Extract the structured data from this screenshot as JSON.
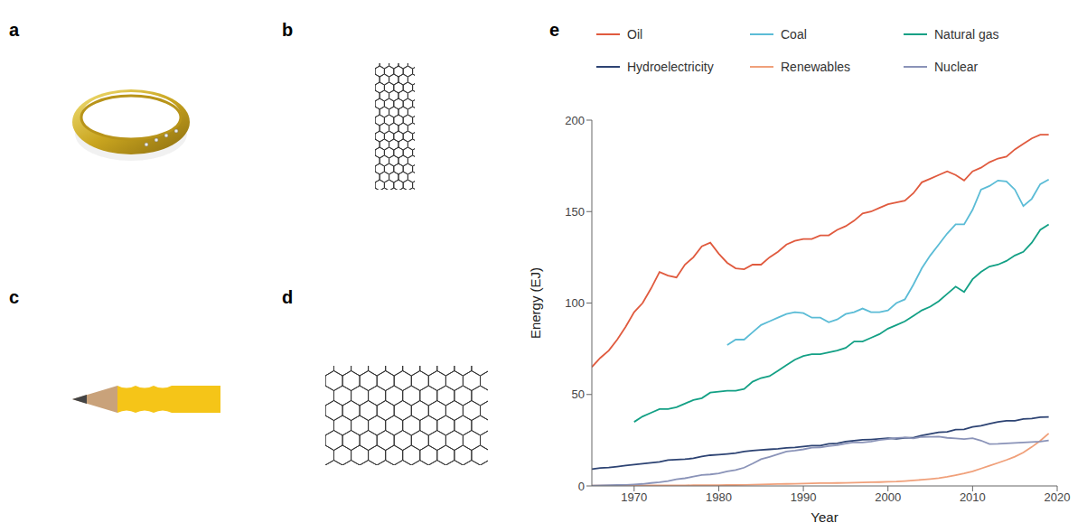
{
  "panels": [
    "a",
    "b",
    "c",
    "d",
    "e"
  ],
  "chart_data": {
    "type": "line",
    "xlabel": "Year",
    "ylabel": "Energy (EJ)",
    "legend": "top",
    "grid": false,
    "xlim": [
      1965,
      2020
    ],
    "xticks": [
      1970,
      1980,
      1990,
      2000,
      2010,
      2020
    ],
    "ylim": [
      0,
      200
    ],
    "yticks": [
      0,
      50,
      100,
      150,
      200
    ],
    "x": [
      1965,
      1966,
      1967,
      1968,
      1969,
      1970,
      1971,
      1972,
      1973,
      1974,
      1975,
      1976,
      1977,
      1978,
      1979,
      1980,
      1981,
      1982,
      1983,
      1984,
      1985,
      1986,
      1987,
      1988,
      1989,
      1990,
      1991,
      1992,
      1993,
      1994,
      1995,
      1996,
      1997,
      1998,
      1999,
      2000,
      2001,
      2002,
      2003,
      2004,
      2005,
      2006,
      2007,
      2008,
      2009,
      2010,
      2011,
      2012,
      2013,
      2014,
      2015,
      2016,
      2017,
      2018,
      2019
    ],
    "series": [
      {
        "name": "Oil",
        "color": "#e05a3e",
        "values": [
          65,
          70,
          74,
          80,
          87,
          95,
          100,
          108,
          117,
          115,
          114,
          121,
          125,
          131,
          133,
          127,
          122,
          119,
          118.5,
          121,
          121,
          125,
          128,
          132,
          134,
          135,
          135,
          137,
          137,
          140,
          142,
          145,
          149,
          150,
          152,
          154,
          155,
          156,
          160,
          166,
          168,
          170,
          172,
          170,
          167,
          172,
          174,
          177,
          179,
          180,
          184,
          187,
          190,
          192,
          192
        ]
      },
      {
        "name": "Coal",
        "color": "#5bbcd6",
        "values": [
          null,
          null,
          null,
          null,
          null,
          null,
          null,
          null,
          null,
          null,
          null,
          null,
          null,
          null,
          null,
          null,
          77,
          80,
          80,
          84,
          88,
          90,
          92,
          94,
          95,
          94.5,
          92,
          92,
          89.5,
          91,
          94,
          95,
          97,
          95,
          95,
          96,
          100,
          102,
          110,
          119,
          126,
          132,
          138,
          143,
          143,
          151,
          162,
          164,
          167,
          166.5,
          162,
          153,
          157,
          165,
          167.5
        ]
      },
      {
        "name": "Natural gas",
        "color": "#13a085",
        "values": [
          null,
          null,
          null,
          null,
          null,
          35,
          38,
          40,
          42,
          42,
          43,
          45,
          47,
          48,
          51,
          51.5,
          52,
          52,
          53,
          57,
          59,
          60,
          63,
          66,
          69,
          71,
          72,
          72,
          73,
          74,
          75.5,
          79,
          79,
          81,
          83,
          86,
          88,
          90,
          93,
          96,
          98,
          101,
          105,
          109,
          106,
          113,
          117,
          120,
          121,
          123,
          126,
          128,
          133,
          140,
          143
        ]
      },
      {
        "name": "Hydroelectricity",
        "color": "#2d4373",
        "values": [
          9.2,
          9.8,
          10.1,
          10.6,
          11.2,
          11.7,
          12.2,
          12.7,
          13.1,
          14.1,
          14.4,
          14.6,
          15.1,
          16.1,
          16.8,
          17.1,
          17.5,
          18,
          18.8,
          19.3,
          19.7,
          20,
          20.3,
          20.8,
          21,
          21.5,
          22,
          22,
          23,
          23.3,
          24.3,
          24.8,
          25.2,
          25.4,
          25.7,
          26.1,
          25.8,
          26.3,
          26.4,
          27.6,
          28.5,
          29.3,
          29.6,
          30.8,
          30.9,
          32.3,
          32.9,
          34,
          35,
          35.6,
          35.6,
          36.6,
          36.9,
          37.6,
          37.7
        ]
      },
      {
        "name": "Renewables",
        "color": "#f0a07a",
        "values": [
          0.2,
          0.2,
          0.2,
          0.2,
          0.3,
          0.3,
          0.3,
          0.3,
          0.3,
          0.3,
          0.3,
          0.3,
          0.4,
          0.4,
          0.4,
          0.4,
          0.5,
          0.5,
          0.6,
          0.7,
          0.8,
          0.9,
          1.0,
          1.1,
          1.2,
          1.3,
          1.4,
          1.5,
          1.5,
          1.6,
          1.7,
          1.8,
          1.9,
          2.0,
          2.1,
          2.3,
          2.4,
          2.7,
          3.0,
          3.4,
          3.8,
          4.3,
          5.0,
          5.9,
          6.8,
          8.0,
          9.5,
          11.0,
          12.6,
          14.2,
          16.0,
          18.3,
          21.3,
          24.7,
          28.7
        ]
      },
      {
        "name": "Nuclear",
        "color": "#8a93b8",
        "values": [
          0.2,
          0.3,
          0.4,
          0.5,
          0.6,
          0.8,
          1.1,
          1.6,
          2.0,
          2.7,
          3.6,
          4.2,
          5.1,
          6.0,
          6.3,
          6.9,
          8.0,
          8.7,
          10.0,
          12.2,
          14.6,
          15.9,
          17.3,
          18.8,
          19.3,
          20.0,
          20.9,
          21.1,
          21.8,
          22.3,
          23.1,
          23.9,
          23.8,
          24.3,
          25.1,
          25.6,
          26.2,
          26.5,
          26.0,
          26.8,
          26.9,
          27.0,
          26.3,
          26.0,
          25.6,
          26.1,
          24.8,
          22.9,
          23.0,
          23.3,
          23.5,
          23.8,
          24.0,
          24.3,
          24.9
        ]
      }
    ]
  }
}
